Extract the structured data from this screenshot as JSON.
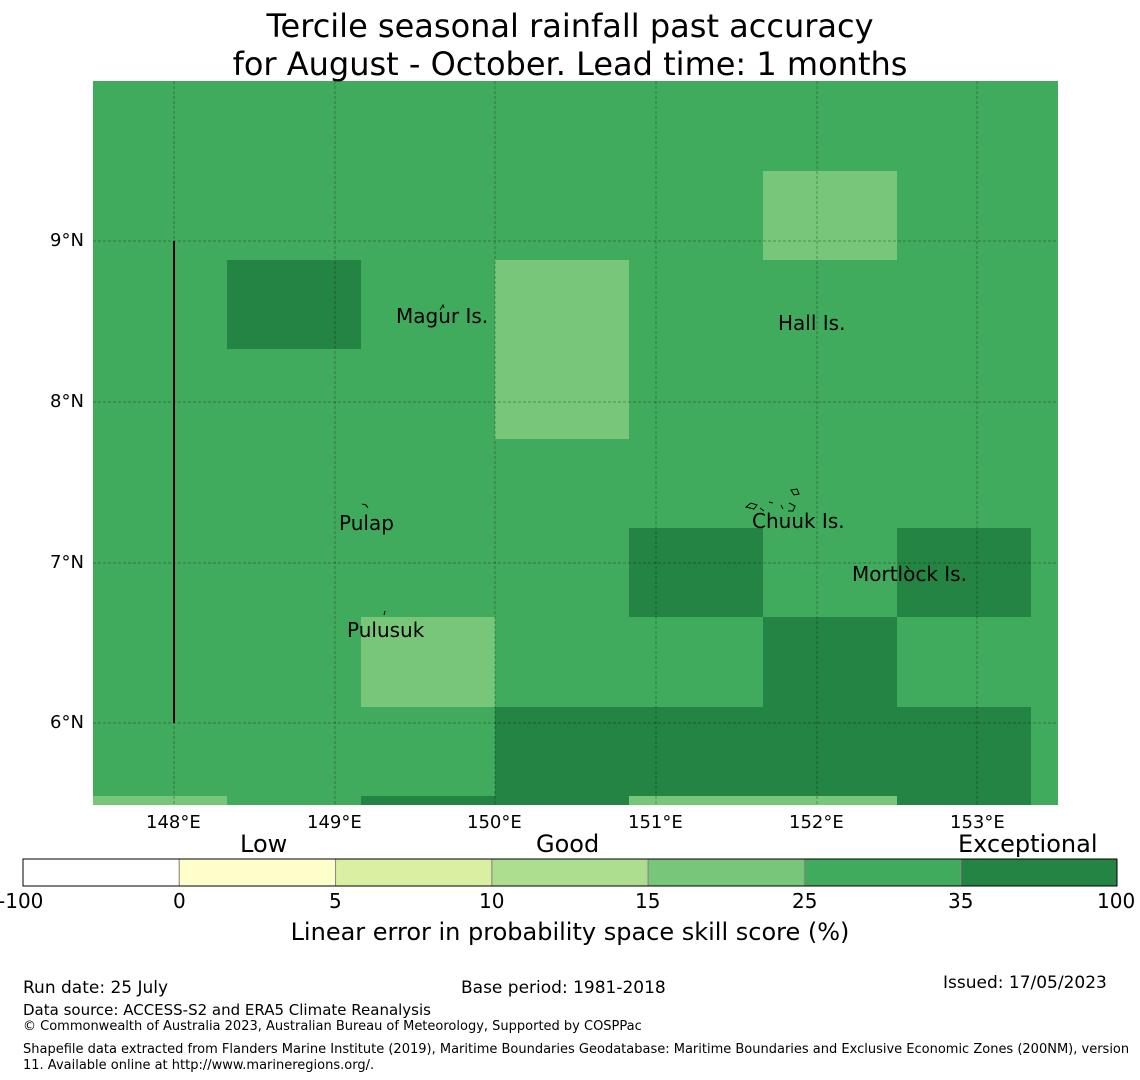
{
  "title": {
    "line1": "Tercile seasonal rainfall past accuracy",
    "line2": "for August - October. Lead time: 1 months"
  },
  "map": {
    "lat_ticks": [
      "9°N",
      "8°N",
      "7°N",
      "6°N"
    ],
    "lon_ticks": [
      "148°E",
      "149°E",
      "150°E",
      "151°E",
      "152°E",
      "153°E"
    ],
    "lon_range": [
      147.5,
      153.5
    ],
    "lat_range": [
      5.5,
      10.0
    ],
    "places": [
      "Magur Is.",
      "Hall Is.",
      "Pulap",
      "Chuuk Is.",
      "Mortlock Is.",
      "Pulusuk"
    ]
  },
  "colorbar": {
    "categories": [
      "Low",
      "Good",
      "Exceptional"
    ],
    "ticks": [
      "-100",
      "0",
      "5",
      "10",
      "15",
      "25",
      "35",
      "100"
    ],
    "colors": [
      "#ffffff",
      "#ffffcc",
      "#d9f0a3",
      "#addd8e",
      "#78c679",
      "#41ab5d",
      "#238443"
    ],
    "label": "Linear error in probability space skill score (%)"
  },
  "footer": {
    "run_date": "Run date: 25 July",
    "base_period": "Base period: 1981-2018",
    "issued": "Issued: 17/05/2023",
    "data_source": "Data source: ACCESS-S2 and ERA5 Climate Reanalysis",
    "copyright": "© Commonwealth of Australia 2023, Australian Bureau of Meteorology, Supported by COSPPac",
    "shapefile": "Shapefile data extracted from Flanders Marine Institute (2019), Maritime Boundaries Geodatabase: Maritime Boundaries and Exclusive Economic Zones (200NM), version 11. Available online at http://www.marineregions.org/."
  }
}
